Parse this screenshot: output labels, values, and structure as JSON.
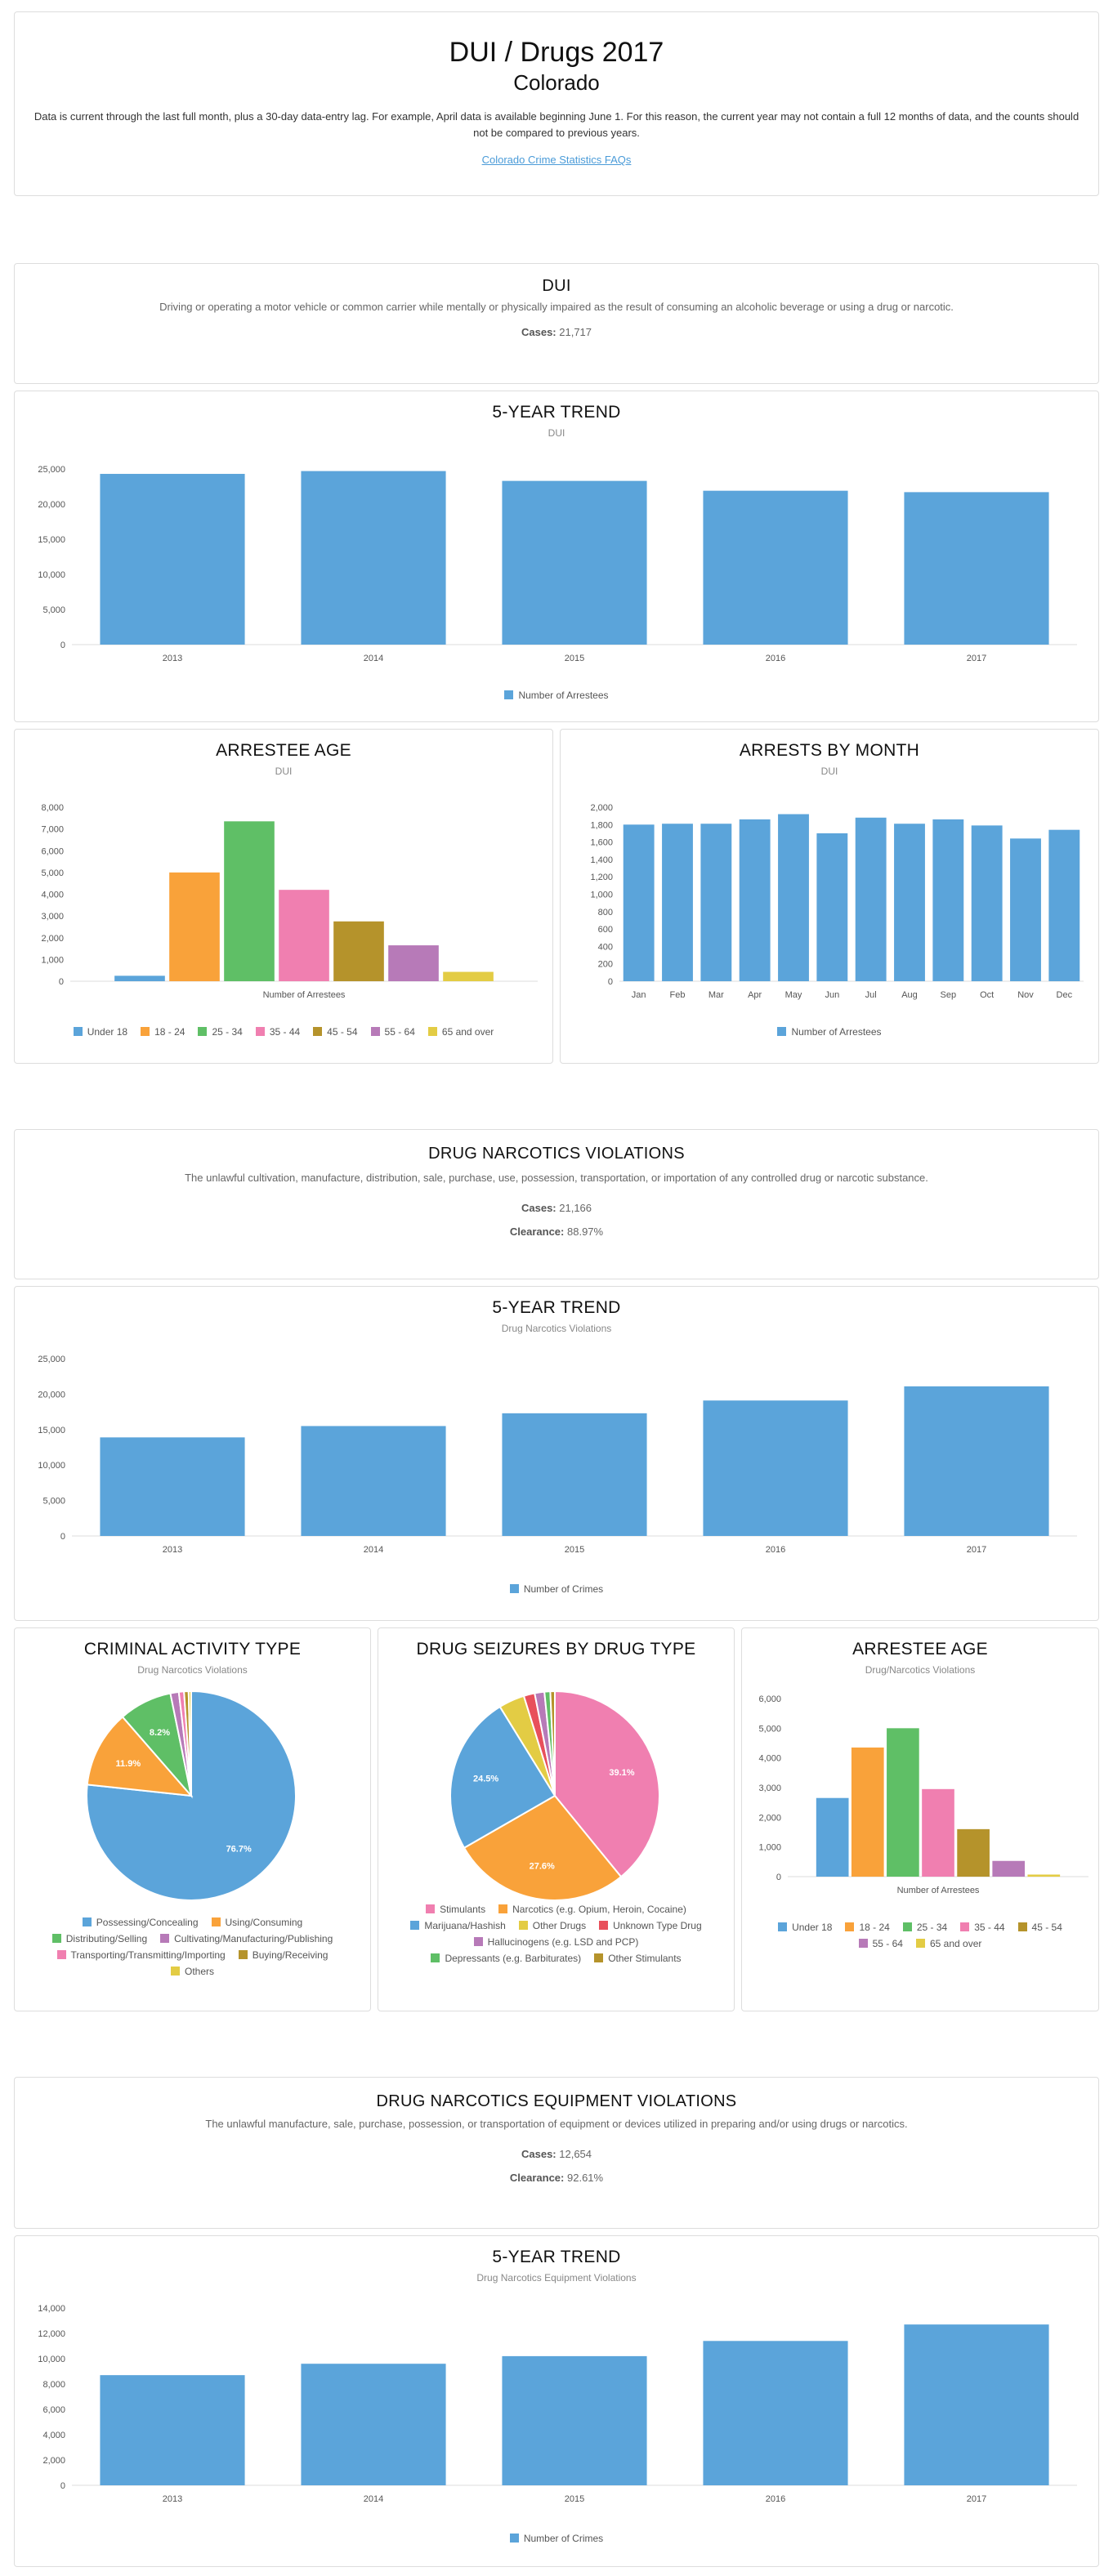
{
  "header": {
    "title": "DUI / Drugs 2017",
    "subtitle": "Colorado",
    "note": "Data is current through the last full month, plus a 30-day data-entry lag. For example, April data is available beginning June 1. For this reason, the current year may not contain a full 12 months of data, and the counts should not be compared to previous years.",
    "faq_link": "Colorado Crime Statistics FAQs"
  },
  "colors": {
    "blue": "#5ba4da",
    "orange": "#f9a23a",
    "green": "#5fbf66",
    "pink": "#f07fb0",
    "olive": "#b5932b",
    "purple": "#b77ab8",
    "yellow": "#e3cc44",
    "red": "#e8505b"
  },
  "dui": {
    "title": "DUI",
    "description": "Driving or operating a motor vehicle or common carrier while mentally or physically impaired as the result of consuming an alcoholic beverage or using a drug or narcotic.",
    "cases_label": "Cases:",
    "cases_value": "21,717"
  },
  "narcotics": {
    "title": "DRUG NARCOTICS VIOLATIONS",
    "description": "The unlawful cultivation, manufacture, distribution, sale, purchase, use, possession, transportation, or importation of any controlled drug or narcotic substance.",
    "cases_label": "Cases:",
    "cases_value": "21,166",
    "clearance_label": "Clearance:",
    "clearance_value": "88.97%"
  },
  "equipment": {
    "title": "DRUG NARCOTICS EQUIPMENT VIOLATIONS",
    "description": "The unlawful manufacture, sale, purchase, possession, or transportation of equipment or devices utilized in preparing and/or using drugs or narcotics.",
    "cases_label": "Cases:",
    "cases_value": "12,654",
    "clearance_label": "Clearance:",
    "clearance_value": "92.61%"
  },
  "chart_data": [
    {
      "id": "dui_trend",
      "type": "bar",
      "title": "5-YEAR TREND",
      "subtitle": "DUI",
      "categories": [
        "2013",
        "2014",
        "2015",
        "2016",
        "2017"
      ],
      "series": [
        {
          "name": "Number of Arrestees",
          "values": [
            24300,
            24700,
            23300,
            21900,
            21700
          ]
        }
      ],
      "ylim": [
        0,
        25000
      ],
      "yticks": [
        0,
        5000,
        10000,
        15000,
        20000,
        25000
      ],
      "legend": "bottom",
      "grid": false
    },
    {
      "id": "dui_age",
      "type": "bar",
      "title": "ARRESTEE AGE",
      "subtitle": "DUI",
      "xlabel": "Number of Arrestees",
      "series": [
        {
          "name": "Under 18",
          "values": [
            250
          ]
        },
        {
          "name": "18 - 24",
          "values": [
            5000
          ]
        },
        {
          "name": "25 - 34",
          "values": [
            7350
          ]
        },
        {
          "name": "35 - 44",
          "values": [
            4200
          ]
        },
        {
          "name": "45 - 54",
          "values": [
            2750
          ]
        },
        {
          "name": "55 - 64",
          "values": [
            1650
          ]
        },
        {
          "name": "65 and over",
          "values": [
            430
          ]
        }
      ],
      "ylim": [
        0,
        8000
      ],
      "yticks": [
        0,
        1000,
        2000,
        3000,
        4000,
        5000,
        6000,
        7000,
        8000
      ],
      "legend": "bottom"
    },
    {
      "id": "dui_month",
      "type": "bar",
      "title": "ARRESTS BY MONTH",
      "subtitle": "DUI",
      "categories": [
        "Jan",
        "Feb",
        "Mar",
        "Apr",
        "May",
        "Jun",
        "Jul",
        "Aug",
        "Sep",
        "Oct",
        "Nov",
        "Dec"
      ],
      "series": [
        {
          "name": "Number of Arrestees",
          "values": [
            1800,
            1810,
            1810,
            1860,
            1920,
            1700,
            1880,
            1810,
            1860,
            1790,
            1640,
            1740
          ]
        }
      ],
      "ylim": [
        0,
        2000
      ],
      "yticks": [
        0,
        200,
        400,
        600,
        800,
        1000,
        1200,
        1400,
        1600,
        1800,
        2000
      ],
      "legend": "bottom"
    },
    {
      "id": "narc_trend",
      "type": "bar",
      "title": "5-YEAR TREND",
      "subtitle": "Drug Narcotics Violations",
      "categories": [
        "2013",
        "2014",
        "2015",
        "2016",
        "2017"
      ],
      "series": [
        {
          "name": "Number of Crimes",
          "values": [
            13900,
            15500,
            17300,
            19100,
            21100
          ]
        }
      ],
      "ylim": [
        0,
        25000
      ],
      "yticks": [
        0,
        5000,
        10000,
        15000,
        20000,
        25000
      ],
      "legend": "bottom"
    },
    {
      "id": "narc_activity",
      "type": "pie",
      "title": "CRIMINAL ACTIVITY TYPE",
      "subtitle": "Drug Narcotics Violations",
      "slices": [
        {
          "name": "Possessing/Concealing",
          "value": 76.7,
          "label": "76.7%",
          "color": "#5ba4da"
        },
        {
          "name": "Using/Consuming",
          "value": 11.9,
          "label": "11.9%",
          "color": "#f9a23a"
        },
        {
          "name": "Distributing/Selling",
          "value": 8.2,
          "label": "8.2%",
          "color": "#5fbf66"
        },
        {
          "name": "Cultivating/Manufacturing/Publishing",
          "value": 1.3,
          "label": "",
          "color": "#b77ab8"
        },
        {
          "name": "Transporting/Transmitting/Importing",
          "value": 0.8,
          "label": "",
          "color": "#f07fb0"
        },
        {
          "name": "Buying/Receiving",
          "value": 0.7,
          "label": "",
          "color": "#b5932b"
        },
        {
          "name": "Others",
          "value": 0.4,
          "label": "",
          "color": "#e3cc44"
        }
      ],
      "legend": "bottom"
    },
    {
      "id": "narc_seizures",
      "type": "pie",
      "title": "DRUG SEIZURES BY DRUG TYPE",
      "subtitle": "",
      "slices": [
        {
          "name": "Stimulants",
          "value": 39.1,
          "label": "39.1%",
          "color": "#f07fb0"
        },
        {
          "name": "Narcotics (e.g. Opium, Heroin, Cocaine)",
          "value": 27.6,
          "label": "27.6%",
          "color": "#f9a23a"
        },
        {
          "name": "Marijuana/Hashish",
          "value": 24.5,
          "label": "24.5%",
          "color": "#5ba4da"
        },
        {
          "name": "Other Drugs",
          "value": 4.0,
          "label": "",
          "color": "#e3cc44"
        },
        {
          "name": "Unknown Type Drug",
          "value": 1.7,
          "label": "",
          "color": "#e8505b"
        },
        {
          "name": "Hallucinogens (e.g. LSD and PCP)",
          "value": 1.5,
          "label": "",
          "color": "#b77ab8"
        },
        {
          "name": "Depressants (e.g. Barbiturates)",
          "value": 0.9,
          "label": "",
          "color": "#5fbf66"
        },
        {
          "name": "Other Stimulants",
          "value": 0.7,
          "label": "",
          "color": "#b5932b"
        }
      ],
      "legend": "bottom"
    },
    {
      "id": "narc_age",
      "type": "bar",
      "title": "ARRESTEE AGE",
      "subtitle": "Drug/Narcotics Violations",
      "xlabel": "Number of Arrestees",
      "series": [
        {
          "name": "Under 18",
          "values": [
            2650
          ]
        },
        {
          "name": "18 - 24",
          "values": [
            4350
          ]
        },
        {
          "name": "25 - 34",
          "values": [
            5000
          ]
        },
        {
          "name": "35 - 44",
          "values": [
            2950
          ]
        },
        {
          "name": "45 - 54",
          "values": [
            1600
          ]
        },
        {
          "name": "55 - 64",
          "values": [
            530
          ]
        },
        {
          "name": "65 and over",
          "values": [
            70
          ]
        }
      ],
      "ylim": [
        0,
        6000
      ],
      "yticks": [
        0,
        1000,
        2000,
        3000,
        4000,
        5000,
        6000
      ],
      "legend": "bottom"
    },
    {
      "id": "equip_trend",
      "type": "bar",
      "title": "5-YEAR TREND",
      "subtitle": "Drug Narcotics Equipment Violations",
      "categories": [
        "2013",
        "2014",
        "2015",
        "2016",
        "2017"
      ],
      "series": [
        {
          "name": "Number of Crimes",
          "values": [
            8700,
            9600,
            10200,
            11400,
            12700
          ]
        }
      ],
      "ylim": [
        0,
        14000
      ],
      "yticks": [
        0,
        2000,
        4000,
        6000,
        8000,
        10000,
        12000,
        14000
      ],
      "legend": "bottom"
    }
  ]
}
